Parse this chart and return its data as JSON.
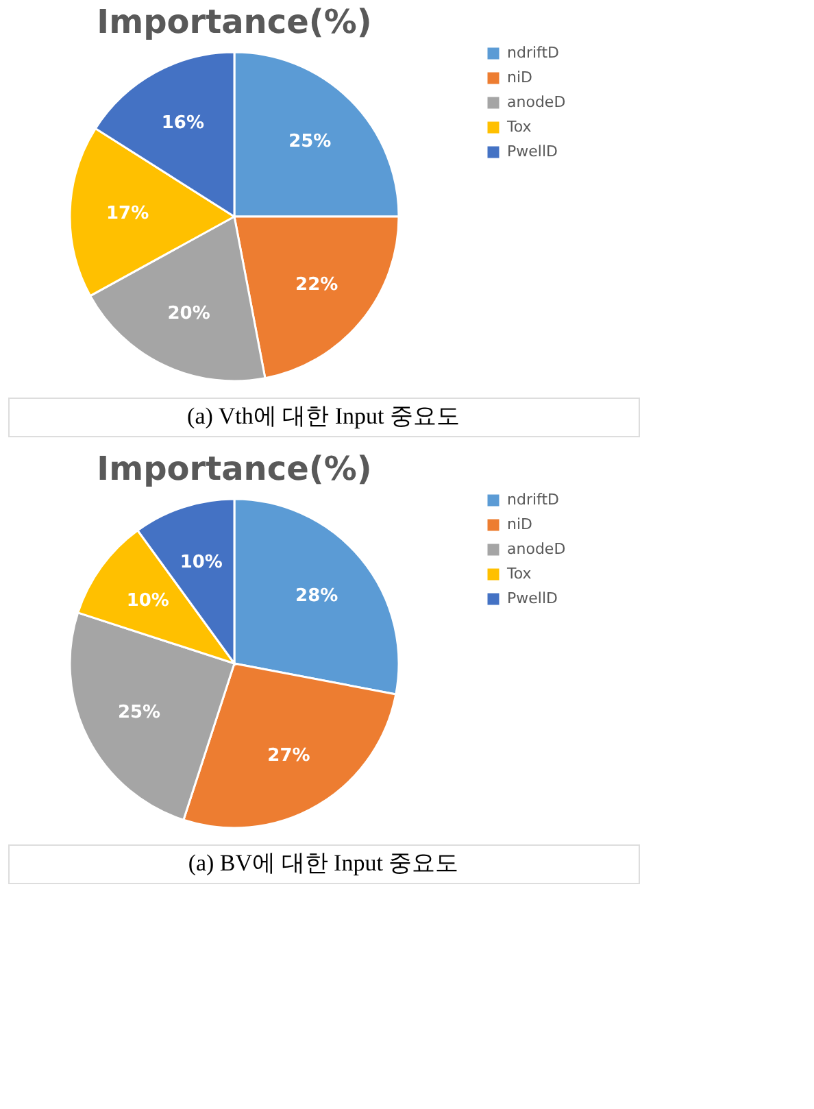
{
  "chart_data": [
    {
      "type": "pie",
      "title": "Importance(%)",
      "categories": [
        "ndriftD",
        "niD",
        "anodeD",
        "Tox",
        "PwellD"
      ],
      "values": [
        25,
        22,
        20,
        17,
        16
      ],
      "value_labels": [
        "25%",
        "22%",
        "20%",
        "17%",
        "16%"
      ],
      "colors": [
        "#5b9bd5",
        "#ed7d31",
        "#a5a5a5",
        "#ffc000",
        "#4472c4"
      ],
      "legend": "right",
      "annotations": [
        "(a)  Vth에 대한 Input 중요도"
      ]
    },
    {
      "type": "pie",
      "title": "Importance(%)",
      "categories": [
        "ndriftD",
        "niD",
        "anodeD",
        "Tox",
        "PwellD"
      ],
      "values": [
        28,
        27,
        25,
        10,
        10
      ],
      "value_labels": [
        "28%",
        "27%",
        "25%",
        "10%",
        "10%"
      ],
      "colors": [
        "#5b9bd5",
        "#ed7d31",
        "#a5a5a5",
        "#ffc000",
        "#4472c4"
      ],
      "legend": "right",
      "annotations": [
        "(a)  BV에 대한 Input 중요도"
      ]
    }
  ]
}
